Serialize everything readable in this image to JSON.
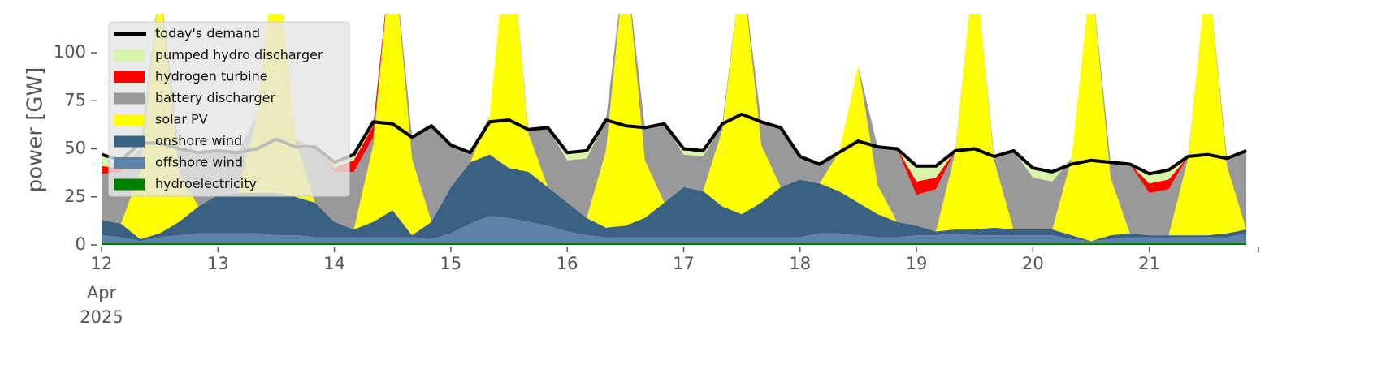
{
  "chart_data": {
    "type": "area",
    "y_label": "power [GW]",
    "x": [
      0,
      4,
      8,
      12,
      16,
      20,
      24,
      28,
      32,
      36,
      40,
      44,
      48,
      52,
      56,
      60,
      64,
      68,
      72,
      76,
      80,
      84,
      88,
      92,
      96,
      100,
      104,
      108,
      112,
      116,
      120,
      124,
      128,
      132,
      136,
      140,
      144,
      148,
      152,
      156,
      160,
      164,
      168,
      172,
      176,
      180,
      184,
      188,
      192,
      196,
      200,
      204,
      208,
      212,
      216,
      220,
      224,
      228,
      232,
      236
    ],
    "xlim": [
      0,
      238.5
    ],
    "xticks": [
      {
        "value": 0,
        "label": "12"
      },
      {
        "value": 24,
        "label": "13"
      },
      {
        "value": 48,
        "label": "14"
      },
      {
        "value": 72,
        "label": "15"
      },
      {
        "value": 96,
        "label": "16"
      },
      {
        "value": 120,
        "label": "17"
      },
      {
        "value": 144,
        "label": "18"
      },
      {
        "value": 168,
        "label": "19"
      },
      {
        "value": 192,
        "label": "20"
      },
      {
        "value": 216,
        "label": "21"
      }
    ],
    "x_tick_sublabels": [
      "Apr",
      "2025"
    ],
    "ylim": [
      0,
      120
    ],
    "yticks": [
      0,
      25,
      50,
      75,
      100
    ],
    "legend": "upper left",
    "series": [
      {
        "name": "hydroelectricity",
        "color": "#008000",
        "values": [
          1,
          1,
          1,
          1,
          1,
          1,
          1,
          1,
          1,
          1,
          1,
          1,
          1,
          1,
          1,
          1,
          1,
          1,
          1,
          1,
          1,
          1,
          1,
          1,
          1,
          1,
          1,
          1,
          1,
          1,
          1,
          1,
          1,
          1,
          1,
          1,
          1,
          1,
          1,
          1,
          1,
          1,
          1,
          1,
          1,
          1,
          1,
          1,
          1,
          1,
          1,
          1,
          1,
          1,
          1,
          1,
          1,
          1,
          1,
          1
        ]
      },
      {
        "name": "offshore wind",
        "color": "#5b83a8",
        "values": [
          4,
          3,
          1,
          3,
          4,
          5,
          5,
          5,
          5,
          4,
          4,
          3,
          3,
          3,
          3,
          3,
          3,
          2,
          5,
          10,
          14,
          13,
          11,
          9,
          6,
          4,
          3,
          3,
          3,
          3,
          3,
          3,
          3,
          3,
          3,
          3,
          3,
          5,
          5,
          4,
          3,
          3,
          4,
          4,
          5,
          4,
          4,
          4,
          4,
          4,
          2,
          1,
          2,
          3,
          3,
          3,
          3,
          3,
          3,
          5
        ]
      },
      {
        "name": "onshore wind",
        "color": "#3b6182",
        "values": [
          8,
          7,
          1,
          2,
          7,
          14,
          20,
          21,
          21,
          22,
          20,
          18,
          8,
          4,
          8,
          14,
          1,
          9,
          24,
          32,
          32,
          26,
          26,
          20,
          15,
          9,
          5,
          6,
          10,
          18,
          26,
          24,
          16,
          12,
          18,
          26,
          30,
          26,
          22,
          17,
          12,
          8,
          5,
          2,
          2,
          3,
          4,
          3,
          3,
          3,
          2,
          0,
          2,
          2,
          1,
          1,
          1,
          1,
          2,
          2
        ]
      },
      {
        "name": "solar PV",
        "color": "#ffff00",
        "values": [
          0,
          0,
          35,
          130,
          25,
          0,
          0,
          0,
          40,
          130,
          30,
          0,
          0,
          0,
          40,
          140,
          40,
          0,
          0,
          0,
          20,
          130,
          20,
          0,
          0,
          0,
          40,
          140,
          30,
          0,
          0,
          0,
          40,
          130,
          30,
          0,
          0,
          0,
          20,
          71,
          15,
          0,
          0,
          0,
          40,
          140,
          35,
          0,
          0,
          0,
          40,
          140,
          30,
          0,
          0,
          0,
          40,
          140,
          35,
          0
        ]
      },
      {
        "name": "battery discharger",
        "color": "#999999",
        "values": [
          24,
          27,
          12,
          0,
          13,
          28,
          23,
          21,
          0,
          0,
          0,
          29,
          26,
          30,
          4,
          0,
          11,
          50,
          22,
          5,
          0,
          0,
          2,
          31,
          22,
          31,
          16,
          0,
          17,
          41,
          17,
          18,
          3,
          0,
          12,
          31,
          12,
          10,
          0,
          0,
          20,
          38,
          16,
          22,
          1,
          0,
          2,
          41,
          27,
          25,
          0,
          0,
          8,
          36,
          22,
          24,
          1,
          0,
          4,
          41
        ]
      },
      {
        "name": "hydrogen turbine",
        "color": "#ff0000",
        "values": [
          4,
          2,
          0,
          0,
          0,
          0,
          0,
          0,
          0,
          0,
          0,
          0,
          2,
          6,
          6,
          0,
          0,
          0,
          0,
          0,
          0,
          0,
          0,
          0,
          0,
          0,
          0,
          0,
          0,
          0,
          0,
          0,
          0,
          0,
          0,
          0,
          0,
          0,
          0,
          0,
          0,
          0,
          7,
          6,
          0,
          0,
          0,
          0,
          0,
          0,
          0,
          0,
          0,
          0,
          5,
          5,
          0,
          0,
          0,
          0
        ]
      },
      {
        "name": "pumped hydro discharger",
        "color": "#d6f5a8",
        "values": [
          6,
          4,
          3,
          0,
          0,
          0,
          0,
          0,
          0,
          0,
          0,
          0,
          3,
          3,
          2,
          0,
          0,
          0,
          0,
          0,
          0,
          0,
          0,
          0,
          4,
          4,
          0,
          0,
          0,
          0,
          3,
          3,
          0,
          0,
          0,
          0,
          0,
          0,
          0,
          0,
          0,
          0,
          8,
          6,
          0,
          0,
          0,
          0,
          5,
          5,
          0,
          0,
          0,
          0,
          5,
          5,
          0,
          0,
          0,
          0
        ]
      }
    ],
    "line": {
      "name": "today's demand",
      "color": "#000000",
      "values": [
        47,
        44,
        53,
        53,
        50,
        48,
        49,
        48,
        50,
        55,
        51,
        51,
        43,
        47,
        64,
        63,
        56,
        62,
        52,
        48,
        64,
        65,
        60,
        61,
        48,
        49,
        65,
        62,
        61,
        63,
        50,
        49,
        63,
        68,
        64,
        61,
        46,
        42,
        48,
        54,
        51,
        50,
        41,
        41,
        49,
        50,
        46,
        49,
        40,
        38,
        42,
        44,
        43,
        42,
        37,
        39,
        46,
        47,
        45,
        49
      ]
    }
  }
}
